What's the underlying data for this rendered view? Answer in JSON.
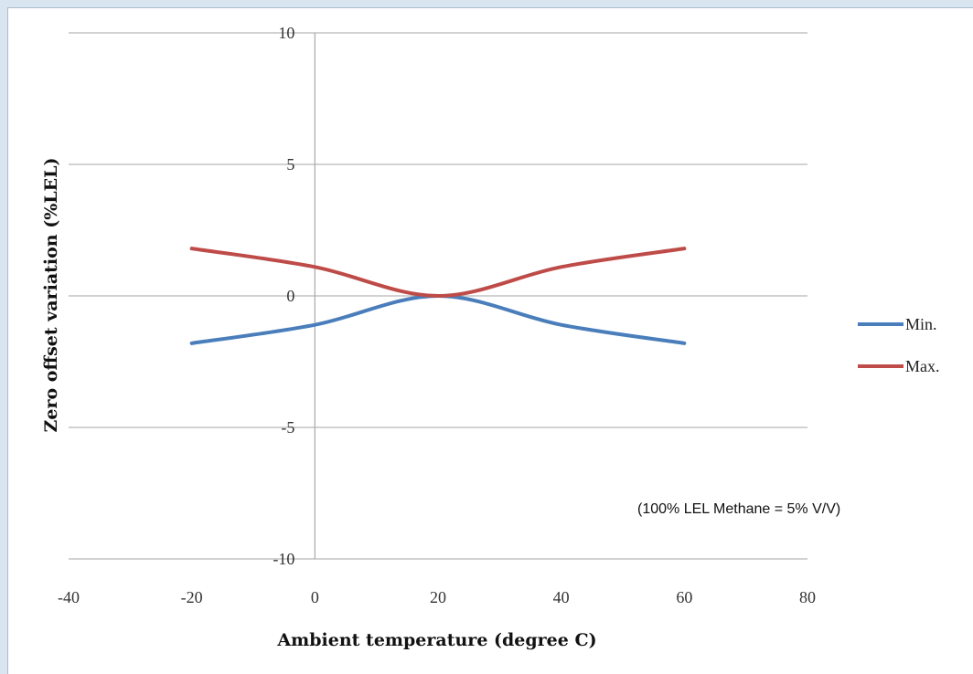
{
  "chart_data": {
    "type": "line",
    "title": "",
    "xlabel": "Ambient temperature (degree C)",
    "ylabel": "Zero offset variation (%LEL)",
    "xlim": [
      -40,
      80
    ],
    "ylim": [
      -10,
      10
    ],
    "x_ticks": [
      -40,
      -20,
      0,
      20,
      40,
      60,
      80
    ],
    "y_ticks": [
      10,
      5,
      0,
      -5,
      -10
    ],
    "x_tick_labels": [
      "-40",
      "-20",
      "0",
      "20",
      "40",
      "60",
      "80"
    ],
    "y_tick_labels": [
      "10",
      "5",
      "0",
      "-5",
      "-10"
    ],
    "grid": "horizontal",
    "legend_position": "right",
    "annotation": "(100% LEL Methane = 5% V/V)",
    "series": [
      {
        "name": "Min.",
        "color": "#4a7ebb",
        "x": [
          -20,
          0,
          20,
          40,
          60
        ],
        "y": [
          -1.8,
          -1.1,
          0,
          -1.1,
          -1.8
        ]
      },
      {
        "name": "Max.",
        "color": "#be4b48",
        "x": [
          -20,
          0,
          20,
          40,
          60
        ],
        "y": [
          1.8,
          1.1,
          0,
          1.1,
          1.8
        ]
      }
    ]
  }
}
